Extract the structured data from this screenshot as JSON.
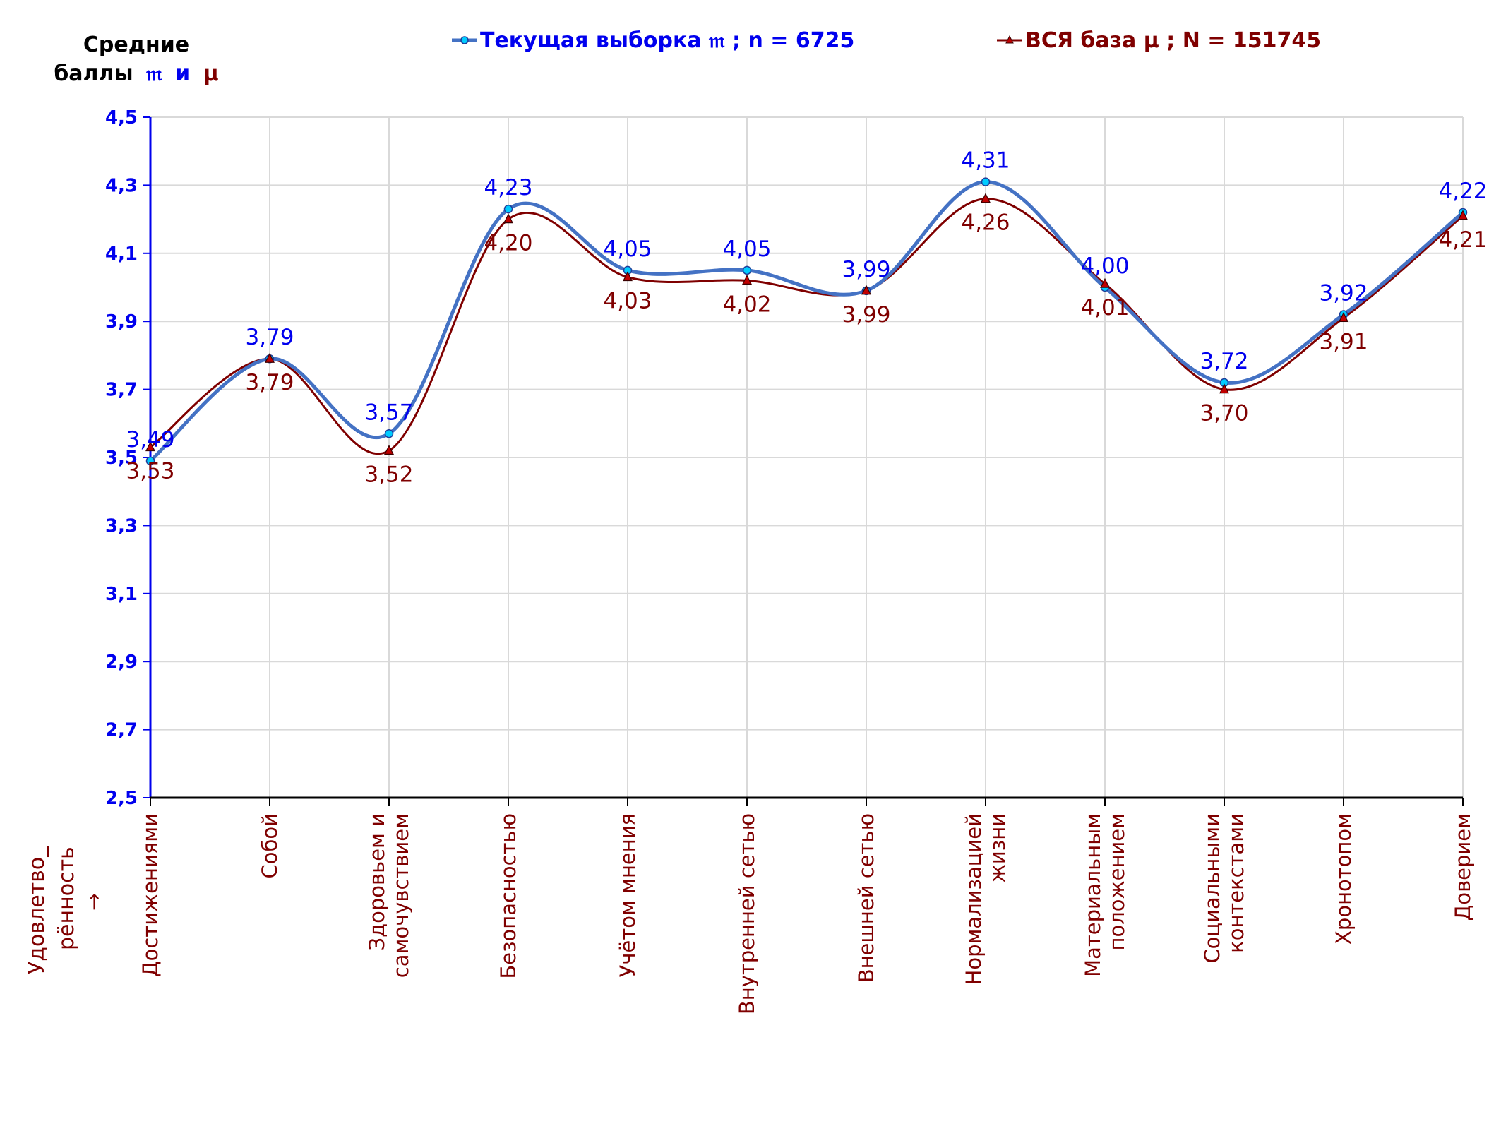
{
  "chart_data": {
    "type": "line",
    "title": "",
    "ytitle_line1": "Средние",
    "ytitle_line2_prefix": "баллы",
    "ytitle_sym_current": "𝔪",
    "ytitle_and": "и",
    "ytitle_sym_base": "μ",
    "xtitle_line1": "Удовлетво_",
    "xtitle_line2": "рённость",
    "xtitle_arrow": "→",
    "ylim": [
      2.5,
      4.5
    ],
    "yticks": [
      "2,5",
      "2,7",
      "2,9",
      "3,1",
      "3,3",
      "3,5",
      "3,7",
      "3,9",
      "4,1",
      "4,3",
      "4,5"
    ],
    "grid": true,
    "legend_position": "top",
    "categories": [
      [
        "Достижениями"
      ],
      [
        "Собой"
      ],
      [
        "Здоровьем и",
        "самочувствием"
      ],
      [
        "Безопасностью"
      ],
      [
        "Учётом мнения"
      ],
      [
        "Внутренней сетью"
      ],
      [
        "Внешней сетью"
      ],
      [
        "Нормализацией",
        "жизни"
      ],
      [
        "Материальным",
        "положением"
      ],
      [
        "Социальными",
        "контекстами"
      ],
      [
        "Хронотопом"
      ],
      [
        "Доверием"
      ]
    ],
    "series": [
      {
        "name": "Текущая выборка 𝔪 ; n = 6725",
        "color": "#4472c4",
        "label_color": "#0000ee",
        "values": [
          3.49,
          3.79,
          3.57,
          4.23,
          4.05,
          4.05,
          3.99,
          4.31,
          4.0,
          3.72,
          3.92,
          4.22
        ],
        "labels": [
          "3,49",
          "3,79",
          "3,57",
          "4,23",
          "4,05",
          "4,05",
          "3,99",
          "4,31",
          "4,00",
          "3,72",
          "3,92",
          "4,22"
        ]
      },
      {
        "name": "ВСЯ база μ ; N = 151745",
        "color": "#7f0000",
        "label_color": "#7f0000",
        "values": [
          3.53,
          3.79,
          3.52,
          4.2,
          4.03,
          4.02,
          3.99,
          4.26,
          4.01,
          3.7,
          3.91,
          4.21
        ],
        "labels": [
          "3,53",
          "3,79",
          "3,52",
          "4,20",
          "4,03",
          "4,02",
          "3,99",
          "4,26",
          "4,01",
          "3,70",
          "3,91",
          "4,21"
        ]
      }
    ],
    "colors": {
      "axis_y": "#0000ee",
      "axis_x": "#000000",
      "grid": "#d9d9d9",
      "ytick_text": "#0000ee",
      "xtick_text": "#7f0000",
      "ytitle_text": "#000000",
      "sym_current": "#0000ee",
      "sym_base": "#7f0000"
    }
  }
}
